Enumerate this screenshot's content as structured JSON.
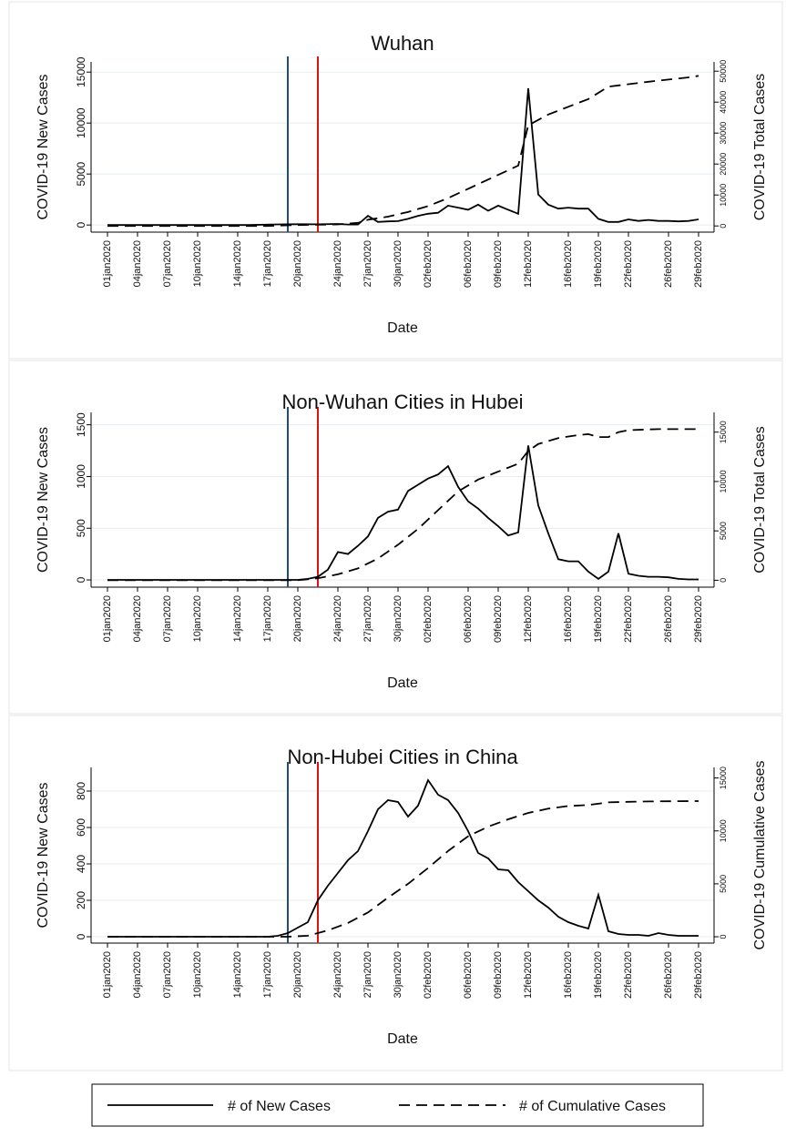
{
  "figure": {
    "legend": {
      "new_label": "# of New Cases",
      "cumulative_label": "# of Cumulative Cases"
    }
  },
  "chart_data": [
    {
      "type": "line",
      "title": "Wuhan",
      "xlabel": "Date",
      "ylabel_left": "COVID-19 New Cases",
      "ylabel_right": "COVID-19 Total Cases",
      "x_tick_labels": [
        "01jan2020",
        "04jan2020",
        "07jan2020",
        "10jan2020",
        "14jan2020",
        "17jan2020",
        "20jan2020",
        "24jan2020",
        "27jan2020",
        "30jan2020",
        "02feb2020",
        "06feb2020",
        "09feb2020",
        "12feb2020",
        "16feb2020",
        "19feb2020",
        "22feb2020",
        "26feb2020",
        "29feb2020"
      ],
      "ylim_left": [
        -700,
        16000
      ],
      "yticks_left": [
        0,
        5000,
        10000,
        15000
      ],
      "ylim_right": [
        -2000,
        53000
      ],
      "yticks_right": [
        0,
        10000,
        20000,
        30000,
        40000,
        50000
      ],
      "markers": [
        {
          "date": "19jan2020",
          "color": "#1f4e79"
        },
        {
          "date": "22jan2020",
          "color": "#e01010"
        }
      ],
      "grid": true,
      "series": [
        {
          "name": "# of New Cases",
          "axis": "left",
          "points": [
            [
              "01jan2020",
              0
            ],
            [
              "05jan2020",
              0
            ],
            [
              "10jan2020",
              0
            ],
            [
              "15jan2020",
              0
            ],
            [
              "18jan2020",
              60
            ],
            [
              "20jan2020",
              80
            ],
            [
              "22jan2020",
              70
            ],
            [
              "24jan2020",
              100
            ],
            [
              "25jan2020",
              50
            ],
            [
              "26jan2020",
              50
            ],
            [
              "27jan2020",
              900
            ],
            [
              "28jan2020",
              300
            ],
            [
              "29jan2020",
              350
            ],
            [
              "30jan2020",
              380
            ],
            [
              "31jan2020",
              600
            ],
            [
              "01feb2020",
              900
            ],
            [
              "02feb2020",
              1100
            ],
            [
              "03feb2020",
              1200
            ],
            [
              "04feb2020",
              1900
            ],
            [
              "05feb2020",
              1700
            ],
            [
              "06feb2020",
              1500
            ],
            [
              "07feb2020",
              2000
            ],
            [
              "08feb2020",
              1400
            ],
            [
              "09feb2020",
              1900
            ],
            [
              "10feb2020",
              1500
            ],
            [
              "11feb2020",
              1100
            ],
            [
              "12feb2020",
              13400
            ],
            [
              "13feb2020",
              3000
            ],
            [
              "14feb2020",
              2000
            ],
            [
              "15feb2020",
              1600
            ],
            [
              "16feb2020",
              1700
            ],
            [
              "17feb2020",
              1600
            ],
            [
              "18feb2020",
              1600
            ],
            [
              "19feb2020",
              600
            ],
            [
              "20feb2020",
              300
            ],
            [
              "21feb2020",
              300
            ],
            [
              "22feb2020",
              550
            ],
            [
              "23feb2020",
              400
            ],
            [
              "24feb2020",
              500
            ],
            [
              "25feb2020",
              400
            ],
            [
              "26feb2020",
              400
            ],
            [
              "27feb2020",
              350
            ],
            [
              "28feb2020",
              400
            ],
            [
              "29feb2020",
              550
            ]
          ]
        },
        {
          "name": "# of Cumulative Cases",
          "axis": "right",
          "points": [
            [
              "01jan2020",
              0
            ],
            [
              "10jan2020",
              0
            ],
            [
              "17jan2020",
              0
            ],
            [
              "20jan2020",
              300
            ],
            [
              "24jan2020",
              500
            ],
            [
              "26jan2020",
              1000
            ],
            [
              "27jan2020",
              2000
            ],
            [
              "29jan2020",
              3000
            ],
            [
              "31jan2020",
              4500
            ],
            [
              "02feb2020",
              6400
            ],
            [
              "04feb2020",
              9000
            ],
            [
              "06feb2020",
              12000
            ],
            [
              "08feb2020",
              15000
            ],
            [
              "10feb2020",
              18000
            ],
            [
              "11feb2020",
              19500
            ],
            [
              "12feb2020",
              32500
            ],
            [
              "14feb2020",
              36000
            ],
            [
              "16feb2020",
              38500
            ],
            [
              "18feb2020",
              41000
            ],
            [
              "20feb2020",
              45000
            ],
            [
              "22feb2020",
              45800
            ],
            [
              "24feb2020",
              46600
            ],
            [
              "26feb2020",
              47300
            ],
            [
              "28feb2020",
              48000
            ],
            [
              "29feb2020",
              48500
            ]
          ]
        }
      ]
    },
    {
      "type": "line",
      "title": "Non-Wuhan Cities in Hubei",
      "xlabel": "Date",
      "ylabel_left": "COVID-19 New Cases",
      "ylabel_right": "COVID-19 Total Cases",
      "x_tick_labels": [
        "01jan2020",
        "04jan2020",
        "07jan2020",
        "10jan2020",
        "14jan2020",
        "17jan2020",
        "20jan2020",
        "24jan2020",
        "27jan2020",
        "30jan2020",
        "02feb2020",
        "06feb2020",
        "09feb2020",
        "12feb2020",
        "16feb2020",
        "19feb2020",
        "22feb2020",
        "26feb2020",
        "29feb2020"
      ],
      "ylim_left": [
        -70,
        1620
      ],
      "yticks_left": [
        0,
        500,
        1000,
        1500
      ],
      "ylim_right": [
        -700,
        17000
      ],
      "yticks_right": [
        0,
        5000,
        10000,
        15000
      ],
      "markers": [
        {
          "date": "19jan2020",
          "color": "#1f4e79"
        },
        {
          "date": "22jan2020",
          "color": "#e01010"
        }
      ],
      "grid": true,
      "series": [
        {
          "name": "# of New Cases",
          "axis": "left",
          "points": [
            [
              "01jan2020",
              0
            ],
            [
              "10jan2020",
              0
            ],
            [
              "18jan2020",
              0
            ],
            [
              "20jan2020",
              0
            ],
            [
              "21jan2020",
              10
            ],
            [
              "22jan2020",
              30
            ],
            [
              "23jan2020",
              100
            ],
            [
              "24jan2020",
              270
            ],
            [
              "25jan2020",
              250
            ],
            [
              "26jan2020",
              330
            ],
            [
              "27jan2020",
              420
            ],
            [
              "28jan2020",
              600
            ],
            [
              "29jan2020",
              660
            ],
            [
              "30jan2020",
              680
            ],
            [
              "31jan2020",
              860
            ],
            [
              "01feb2020",
              920
            ],
            [
              "02feb2020",
              980
            ],
            [
              "03feb2020",
              1020
            ],
            [
              "04feb2020",
              1100
            ],
            [
              "05feb2020",
              900
            ],
            [
              "06feb2020",
              760
            ],
            [
              "07feb2020",
              690
            ],
            [
              "08feb2020",
              600
            ],
            [
              "09feb2020",
              520
            ],
            [
              "10feb2020",
              430
            ],
            [
              "11feb2020",
              460
            ],
            [
              "12feb2020",
              1300
            ],
            [
              "13feb2020",
              720
            ],
            [
              "14feb2020",
              450
            ],
            [
              "15feb2020",
              200
            ],
            [
              "16feb2020",
              180
            ],
            [
              "17feb2020",
              180
            ],
            [
              "18feb2020",
              80
            ],
            [
              "19feb2020",
              10
            ],
            [
              "20feb2020",
              80
            ],
            [
              "21feb2020",
              450
            ],
            [
              "22feb2020",
              60
            ],
            [
              "23feb2020",
              40
            ],
            [
              "24feb2020",
              30
            ],
            [
              "25feb2020",
              30
            ],
            [
              "26feb2020",
              25
            ],
            [
              "27feb2020",
              10
            ],
            [
              "28feb2020",
              5
            ],
            [
              "29feb2020",
              5
            ]
          ]
        },
        {
          "name": "# of Cumulative Cases",
          "axis": "right",
          "points": [
            [
              "01jan2020",
              0
            ],
            [
              "10jan2020",
              0
            ],
            [
              "18jan2020",
              0
            ],
            [
              "20jan2020",
              0
            ],
            [
              "22jan2020",
              200
            ],
            [
              "24jan2020",
              600
            ],
            [
              "26jan2020",
              1200
            ],
            [
              "28jan2020",
              2200
            ],
            [
              "30jan2020",
              3600
            ],
            [
              "01feb2020",
              5200
            ],
            [
              "03feb2020",
              7100
            ],
            [
              "05feb2020",
              9000
            ],
            [
              "07feb2020",
              10200
            ],
            [
              "09feb2020",
              11000
            ],
            [
              "11feb2020",
              11800
            ],
            [
              "12feb2020",
              13100
            ],
            [
              "13feb2020",
              13800
            ],
            [
              "15feb2020",
              14400
            ],
            [
              "17feb2020",
              14700
            ],
            [
              "18feb2020",
              14800
            ],
            [
              "19feb2020",
              14500
            ],
            [
              "20feb2020",
              14500
            ],
            [
              "21feb2020",
              15000
            ],
            [
              "22feb2020",
              15200
            ],
            [
              "25feb2020",
              15300
            ],
            [
              "29feb2020",
              15300
            ]
          ]
        }
      ]
    },
    {
      "type": "line",
      "title": "Non-Hubei Cities in China",
      "xlabel": "Date",
      "ylabel_left": "COVID-19 New Cases",
      "ylabel_right": "COVID-19 Cumulative Cases",
      "x_tick_labels": [
        "01jan2020",
        "04jan2020",
        "07jan2020",
        "10jan2020",
        "14jan2020",
        "17jan2020",
        "20jan2020",
        "24jan2020",
        "27jan2020",
        "30jan2020",
        "02feb2020",
        "06feb2020",
        "09feb2020",
        "12feb2020",
        "16feb2020",
        "19feb2020",
        "22feb2020",
        "26feb2020",
        "29feb2020"
      ],
      "ylim_left": [
        -35,
        930
      ],
      "yticks_left": [
        0,
        200,
        400,
        600,
        800
      ],
      "ylim_right": [
        -600,
        16000
      ],
      "yticks_right": [
        0,
        5000,
        10000,
        15000
      ],
      "markers": [
        {
          "date": "19jan2020",
          "color": "#1f4e79"
        },
        {
          "date": "22jan2020",
          "color": "#e01010"
        }
      ],
      "grid": true,
      "series": [
        {
          "name": "# of New Cases",
          "axis": "left",
          "points": [
            [
              "01jan2020",
              0
            ],
            [
              "10jan2020",
              0
            ],
            [
              "17jan2020",
              0
            ],
            [
              "18jan2020",
              5
            ],
            [
              "19jan2020",
              20
            ],
            [
              "20jan2020",
              50
            ],
            [
              "21jan2020",
              80
            ],
            [
              "22jan2020",
              200
            ],
            [
              "23jan2020",
              280
            ],
            [
              "24jan2020",
              350
            ],
            [
              "25jan2020",
              420
            ],
            [
              "26jan2020",
              470
            ],
            [
              "27jan2020",
              580
            ],
            [
              "28jan2020",
              700
            ],
            [
              "29jan2020",
              750
            ],
            [
              "30jan2020",
              740
            ],
            [
              "31jan2020",
              660
            ],
            [
              "01feb2020",
              720
            ],
            [
              "02feb2020",
              860
            ],
            [
              "03feb2020",
              780
            ],
            [
              "04feb2020",
              750
            ],
            [
              "05feb2020",
              680
            ],
            [
              "06feb2020",
              580
            ],
            [
              "07feb2020",
              460
            ],
            [
              "08feb2020",
              430
            ],
            [
              "09feb2020",
              370
            ],
            [
              "10feb2020",
              365
            ],
            [
              "11feb2020",
              300
            ],
            [
              "12feb2020",
              250
            ],
            [
              "13feb2020",
              200
            ],
            [
              "14feb2020",
              160
            ],
            [
              "15feb2020",
              110
            ],
            [
              "16feb2020",
              80
            ],
            [
              "17feb2020",
              60
            ],
            [
              "18feb2020",
              45
            ],
            [
              "19feb2020",
              230
            ],
            [
              "20feb2020",
              30
            ],
            [
              "21feb2020",
              15
            ],
            [
              "22feb2020",
              10
            ],
            [
              "23feb2020",
              10
            ],
            [
              "24feb2020",
              5
            ],
            [
              "25feb2020",
              20
            ],
            [
              "26feb2020",
              10
            ],
            [
              "27feb2020",
              5
            ],
            [
              "28feb2020",
              5
            ],
            [
              "29feb2020",
              5
            ]
          ]
        },
        {
          "name": "# of Cumulative Cases",
          "axis": "right",
          "points": [
            [
              "01jan2020",
              0
            ],
            [
              "10jan2020",
              0
            ],
            [
              "19jan2020",
              0
            ],
            [
              "21jan2020",
              100
            ],
            [
              "23jan2020",
              600
            ],
            [
              "25jan2020",
              1300
            ],
            [
              "27jan2020",
              2300
            ],
            [
              "29jan2020",
              3700
            ],
            [
              "31jan2020",
              5000
            ],
            [
              "02feb2020",
              6500
            ],
            [
              "04feb2020",
              8100
            ],
            [
              "06feb2020",
              9500
            ],
            [
              "08feb2020",
              10400
            ],
            [
              "10feb2020",
              11100
            ],
            [
              "12feb2020",
              11700
            ],
            [
              "14feb2020",
              12100
            ],
            [
              "16feb2020",
              12350
            ],
            [
              "18feb2020",
              12450
            ],
            [
              "20feb2020",
              12700
            ],
            [
              "22feb2020",
              12750
            ],
            [
              "24feb2020",
              12780
            ],
            [
              "26feb2020",
              12800
            ],
            [
              "29feb2020",
              12820
            ]
          ]
        }
      ]
    }
  ]
}
